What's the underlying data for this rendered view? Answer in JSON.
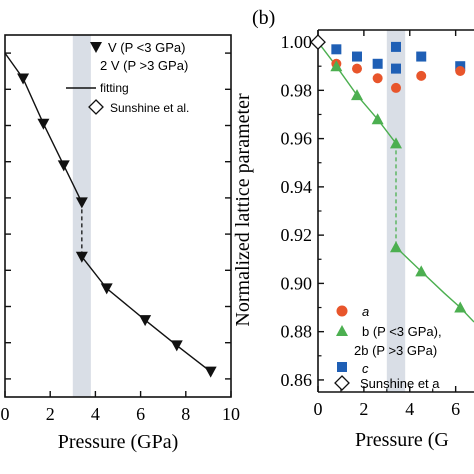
{
  "chart_data": [
    {
      "type": "scatter",
      "panel_label": "",
      "xlabel": "Pressure (GPa)",
      "ylabel": "",
      "xlim": [
        0,
        10
      ],
      "xticks": [
        "0",
        "2",
        "4",
        "6",
        "8",
        "10"
      ],
      "ylim": [
        0.62,
        1.02
      ],
      "legend_position": "top-right",
      "legend": {
        "series1_label": "V (P <3 GPa)",
        "series2_label": "2 V (P >3 GPa)",
        "fit_label": "fitting",
        "ref_label": "Sunshine et al."
      },
      "shaded_band": [
        3.0,
        3.8
      ],
      "series": [
        {
          "marker": "triangle-down",
          "x": [
            0.0,
            0.8,
            1.7,
            2.6,
            3.4,
            3.4,
            4.5,
            6.2,
            7.6,
            9.1
          ],
          "y": [
            1.0,
            0.972,
            0.922,
            0.876,
            0.835,
            0.775,
            0.74,
            0.705,
            0.677,
            0.648
          ]
        }
      ],
      "fit_line": {
        "segment1": {
          "x": [
            0.0,
            0.8,
            1.7,
            2.6,
            3.4
          ],
          "y": [
            1.0,
            0.972,
            0.922,
            0.876,
            0.835
          ]
        },
        "segment2": {
          "x": [
            3.4,
            4.5,
            6.2,
            7.6,
            9.1
          ],
          "y": [
            0.775,
            0.74,
            0.705,
            0.677,
            0.648
          ]
        }
      }
    },
    {
      "type": "scatter",
      "panel_label": "(b)",
      "xlabel": "Pressure (G",
      "ylabel": "Normalized lattice parameter",
      "xlim": [
        0,
        6.8
      ],
      "xticks": [
        "0",
        "2",
        "4",
        "6"
      ],
      "ylim": [
        0.855,
        1.005
      ],
      "yticks": [
        "0.86",
        "0.88",
        "0.90",
        "0.92",
        "0.94",
        "0.96",
        "0.98",
        "1.00"
      ],
      "legend_position": "bottom-right",
      "legend": {
        "a_label": "a",
        "b1_label": "b (P <3 GPa),",
        "b2_label": "2b (P >3 GPa)",
        "c_label": "c",
        "ref_label": "Sunshine et a"
      },
      "shaded_band": [
        3.0,
        3.8
      ],
      "colors": {
        "a": "#e8552b",
        "b": "#4caf50",
        "c": "#1f5fb5"
      },
      "series": [
        {
          "name": "a",
          "marker": "circle",
          "x": [
            0.8,
            1.7,
            2.6,
            3.4,
            4.5,
            6.2
          ],
          "y": [
            0.991,
            0.989,
            0.985,
            0.981,
            0.986,
            0.988
          ]
        },
        {
          "name": "b",
          "marker": "triangle-up",
          "x": [
            0.8,
            1.7,
            2.6,
            3.4,
            3.4,
            4.5,
            6.2
          ],
          "y": [
            0.99,
            0.978,
            0.968,
            0.958,
            0.915,
            0.905,
            0.89
          ]
        },
        {
          "name": "c",
          "marker": "square",
          "x": [
            0.8,
            1.7,
            2.6,
            3.4,
            4.5,
            6.2
          ],
          "y": [
            0.997,
            0.994,
            0.991,
            0.998,
            0.994,
            0.99
          ]
        }
      ],
      "ref_point": {
        "x": 0.0,
        "y": 1.0
      },
      "extra_points": {
        "c": {
          "x": [
            3.4
          ],
          "y": [
            0.989
          ]
        }
      },
      "fit_line": {
        "segment1": {
          "x": [
            0.0,
            0.8,
            1.7,
            2.6,
            3.4
          ],
          "y": [
            1.0,
            0.99,
            0.978,
            0.968,
            0.958
          ]
        },
        "segment2": {
          "x": [
            3.4,
            4.5,
            5.5,
            6.2,
            6.8
          ],
          "y": [
            0.915,
            0.905,
            0.896,
            0.89,
            0.884
          ]
        }
      }
    }
  ]
}
